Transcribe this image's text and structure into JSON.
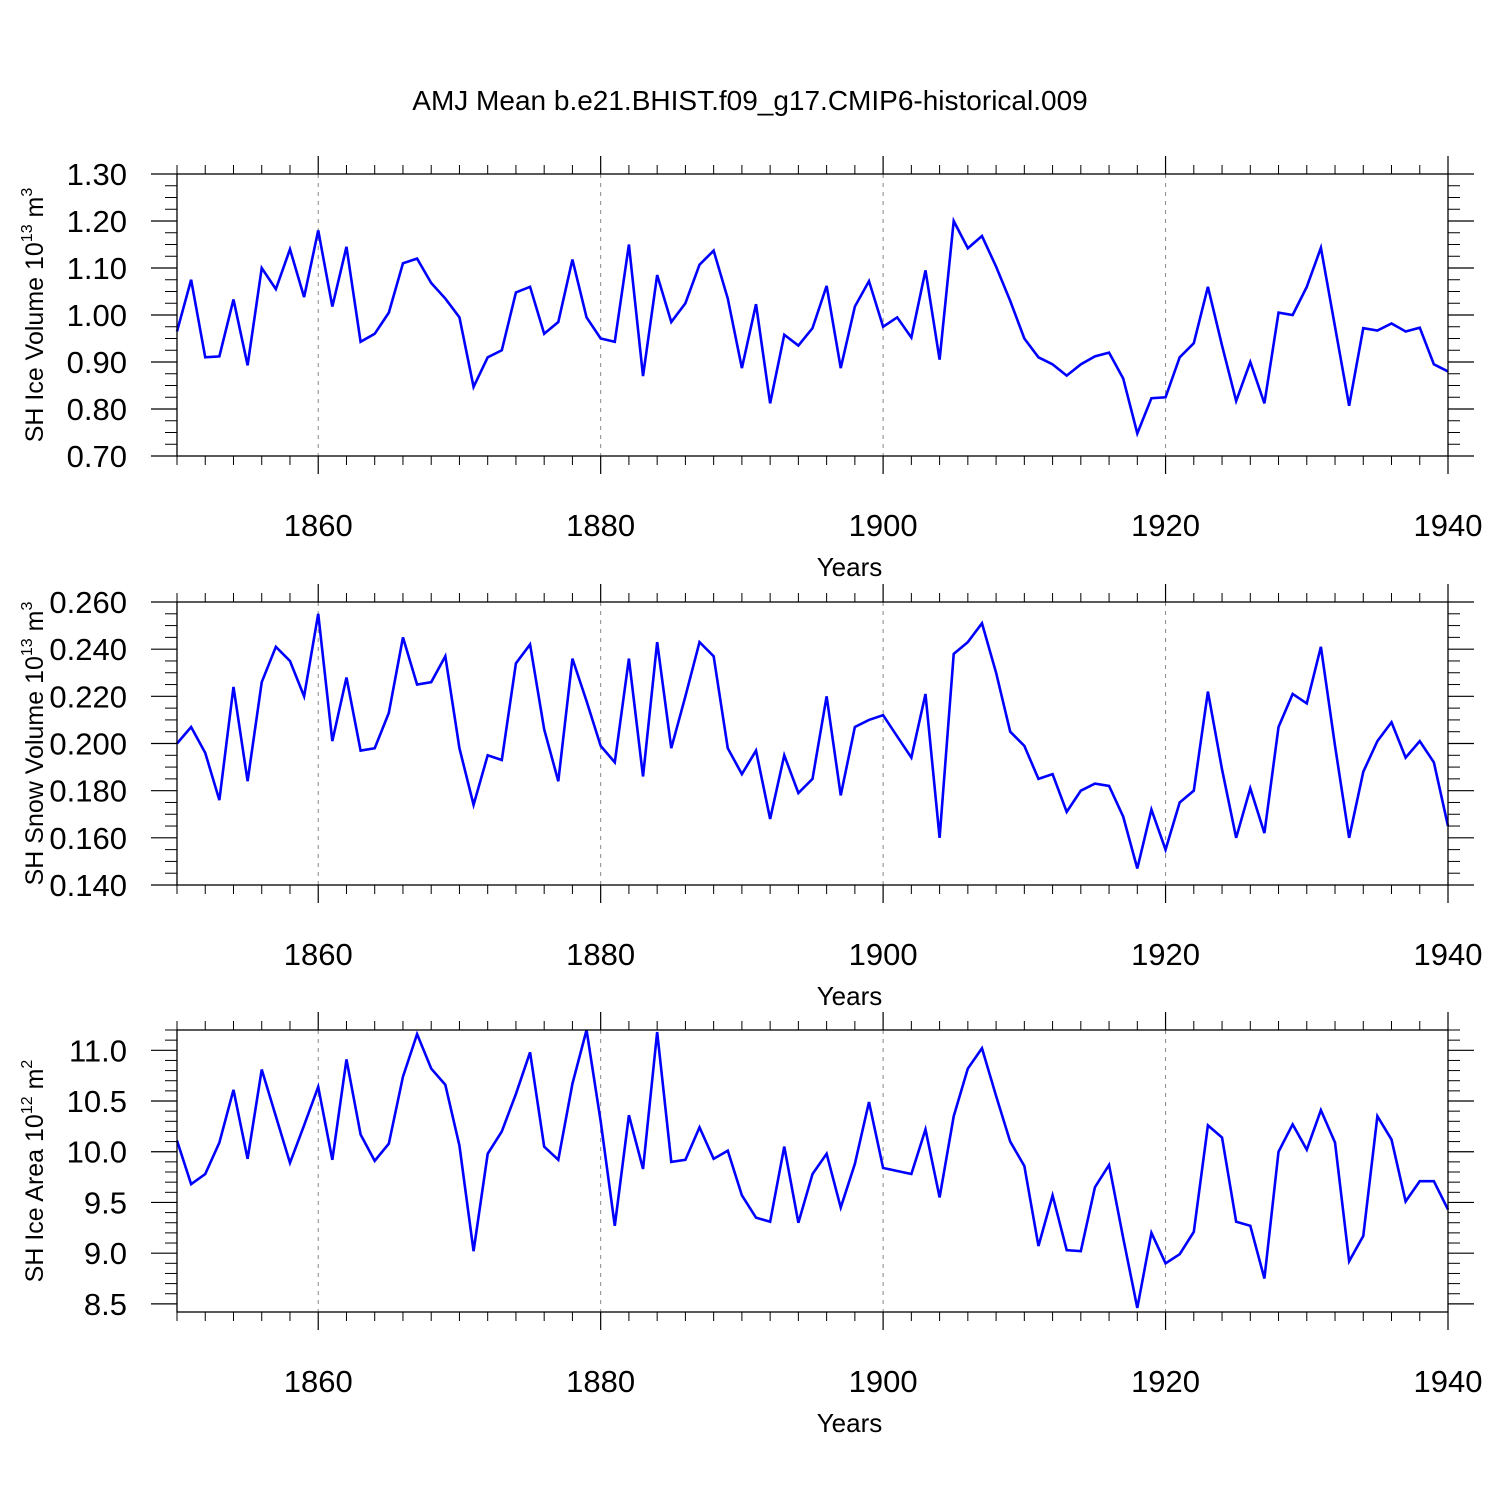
{
  "title": "AMJ Mean b.e21.BHIST.f09_g17.CMIP6-historical.009",
  "line_color": "#0000ff",
  "chart_data": [
    {
      "type": "line",
      "xlabel": "Years",
      "ylabel_main": "SH Ice Volume 10",
      "ylabel_sup1": "13",
      "ylabel_unit": " m",
      "ylabel_sup2": "3",
      "xlim": [
        1850,
        1940
      ],
      "ylim": [
        0.7,
        1.3
      ],
      "x_ticks": [
        1860,
        1880,
        1900,
        1920,
        1940
      ],
      "x_tick_labels": [
        "1860",
        "1880",
        "1900",
        "1920",
        "1940"
      ],
      "y_ticks": [
        0.7,
        0.8,
        0.9,
        1.0,
        1.1,
        1.2,
        1.3
      ],
      "y_tick_labels": [
        "0.70",
        "0.80",
        "0.90",
        "1.00",
        "1.10",
        "1.20",
        "1.30"
      ],
      "y_minor_step": 0.025,
      "x_minor_step": 2,
      "grid": "vertical dashed at major x ticks",
      "x_start": 1850,
      "values": [
        0.965,
        1.075,
        0.91,
        0.912,
        1.033,
        0.893,
        1.1,
        1.055,
        1.14,
        1.038,
        1.18,
        1.018,
        1.145,
        0.943,
        0.96,
        1.005,
        1.11,
        1.12,
        1.068,
        1.035,
        0.995,
        0.847,
        0.91,
        0.925,
        1.048,
        1.06,
        0.96,
        0.985,
        1.118,
        0.995,
        0.95,
        0.943,
        1.15,
        0.87,
        1.085,
        0.985,
        1.025,
        1.107,
        1.137,
        1.035,
        0.887,
        1.023,
        0.812,
        0.958,
        0.935,
        0.972,
        1.062,
        0.887,
        1.018,
        1.072,
        0.975,
        0.995,
        0.952,
        1.095,
        0.905,
        1.2,
        1.142,
        1.168,
        1.103,
        1.03,
        0.95,
        0.91,
        0.895,
        0.871,
        0.895,
        0.912,
        0.92,
        0.865,
        0.748,
        0.823,
        0.825,
        0.91,
        0.94,
        1.06,
        0.935,
        0.817,
        0.9,
        0.812,
        1.005,
        1.0,
        1.06,
        1.143,
        0.975,
        0.807,
        0.972,
        0.967,
        0.982,
        0.965,
        0.973,
        0.895,
        0.88
      ]
    },
    {
      "type": "line",
      "xlabel": "Years",
      "ylabel_main": "SH Snow Volume 10",
      "ylabel_sup1": "13",
      "ylabel_unit": " m",
      "ylabel_sup2": "3",
      "xlim": [
        1850,
        1940
      ],
      "ylim": [
        0.14,
        0.26
      ],
      "x_ticks": [
        1860,
        1880,
        1900,
        1920,
        1940
      ],
      "x_tick_labels": [
        "1860",
        "1880",
        "1900",
        "1920",
        "1940"
      ],
      "y_ticks": [
        0.14,
        0.16,
        0.18,
        0.2,
        0.22,
        0.24,
        0.26
      ],
      "y_tick_labels": [
        "0.140",
        "0.160",
        "0.180",
        "0.200",
        "0.220",
        "0.240",
        "0.260"
      ],
      "y_minor_step": 0.005,
      "x_minor_step": 2,
      "grid": "vertical dashed at major x ticks",
      "x_start": 1850,
      "values": [
        0.2,
        0.207,
        0.196,
        0.176,
        0.224,
        0.184,
        0.226,
        0.241,
        0.235,
        0.22,
        0.255,
        0.201,
        0.228,
        0.197,
        0.198,
        0.213,
        0.245,
        0.225,
        0.226,
        0.237,
        0.198,
        0.174,
        0.195,
        0.193,
        0.234,
        0.242,
        0.206,
        0.184,
        0.236,
        0.218,
        0.199,
        0.192,
        0.236,
        0.186,
        0.243,
        0.198,
        0.22,
        0.243,
        0.237,
        0.198,
        0.187,
        0.197,
        0.168,
        0.195,
        0.179,
        0.185,
        0.22,
        0.178,
        0.207,
        0.21,
        0.212,
        0.203,
        0.194,
        0.221,
        0.16,
        0.238,
        0.243,
        0.251,
        0.23,
        0.205,
        0.199,
        0.185,
        0.187,
        0.171,
        0.18,
        0.183,
        0.182,
        0.169,
        0.147,
        0.172,
        0.155,
        0.175,
        0.18,
        0.222,
        0.189,
        0.16,
        0.181,
        0.162,
        0.207,
        0.221,
        0.217,
        0.241,
        0.199,
        0.16,
        0.188,
        0.201,
        0.209,
        0.194,
        0.201,
        0.192,
        0.165
      ]
    },
    {
      "type": "line",
      "xlabel": "Years",
      "ylabel_main": "SH Ice Area 10",
      "ylabel_sup1": "12",
      "ylabel_unit": " m",
      "ylabel_sup2": "2",
      "xlim": [
        1850,
        1940
      ],
      "ylim": [
        8.42,
        11.2
      ],
      "x_ticks": [
        1860,
        1880,
        1900,
        1920,
        1940
      ],
      "x_tick_labels": [
        "1860",
        "1880",
        "1900",
        "1920",
        "1940"
      ],
      "y_ticks": [
        8.5,
        9.0,
        9.5,
        10.0,
        10.5,
        11.0
      ],
      "y_tick_labels": [
        "8.5",
        "9.0",
        "9.5",
        "10.0",
        "10.5",
        "11.0"
      ],
      "y_minor_step": 0.1,
      "x_minor_step": 2,
      "grid": "vertical dashed at major x ticks",
      "x_start": 1850,
      "values": [
        10.11,
        9.68,
        9.78,
        10.09,
        10.61,
        9.93,
        10.81,
        10.35,
        9.89,
        10.26,
        10.64,
        9.92,
        10.91,
        10.17,
        9.91,
        10.08,
        10.74,
        11.16,
        10.82,
        10.66,
        10.06,
        9.02,
        9.98,
        10.2,
        10.57,
        10.98,
        10.05,
        9.92,
        10.67,
        11.2,
        10.3,
        9.27,
        10.36,
        9.83,
        11.18,
        9.9,
        9.92,
        10.24,
        9.93,
        10.01,
        9.57,
        9.35,
        9.31,
        10.05,
        9.3,
        9.78,
        9.98,
        9.45,
        9.88,
        10.49,
        9.84,
        9.81,
        9.78,
        10.22,
        9.55,
        10.35,
        10.82,
        11.02,
        10.55,
        10.1,
        9.86,
        9.07,
        9.57,
        9.03,
        9.02,
        9.65,
        9.87,
        9.15,
        8.46,
        9.2,
        8.9,
        8.99,
        9.21,
        10.26,
        10.14,
        9.31,
        9.27,
        8.75,
        10.0,
        10.27,
        10.02,
        10.41,
        10.09,
        8.92,
        9.17,
        10.35,
        10.12,
        9.51,
        9.71,
        9.71,
        9.43
      ]
    }
  ]
}
